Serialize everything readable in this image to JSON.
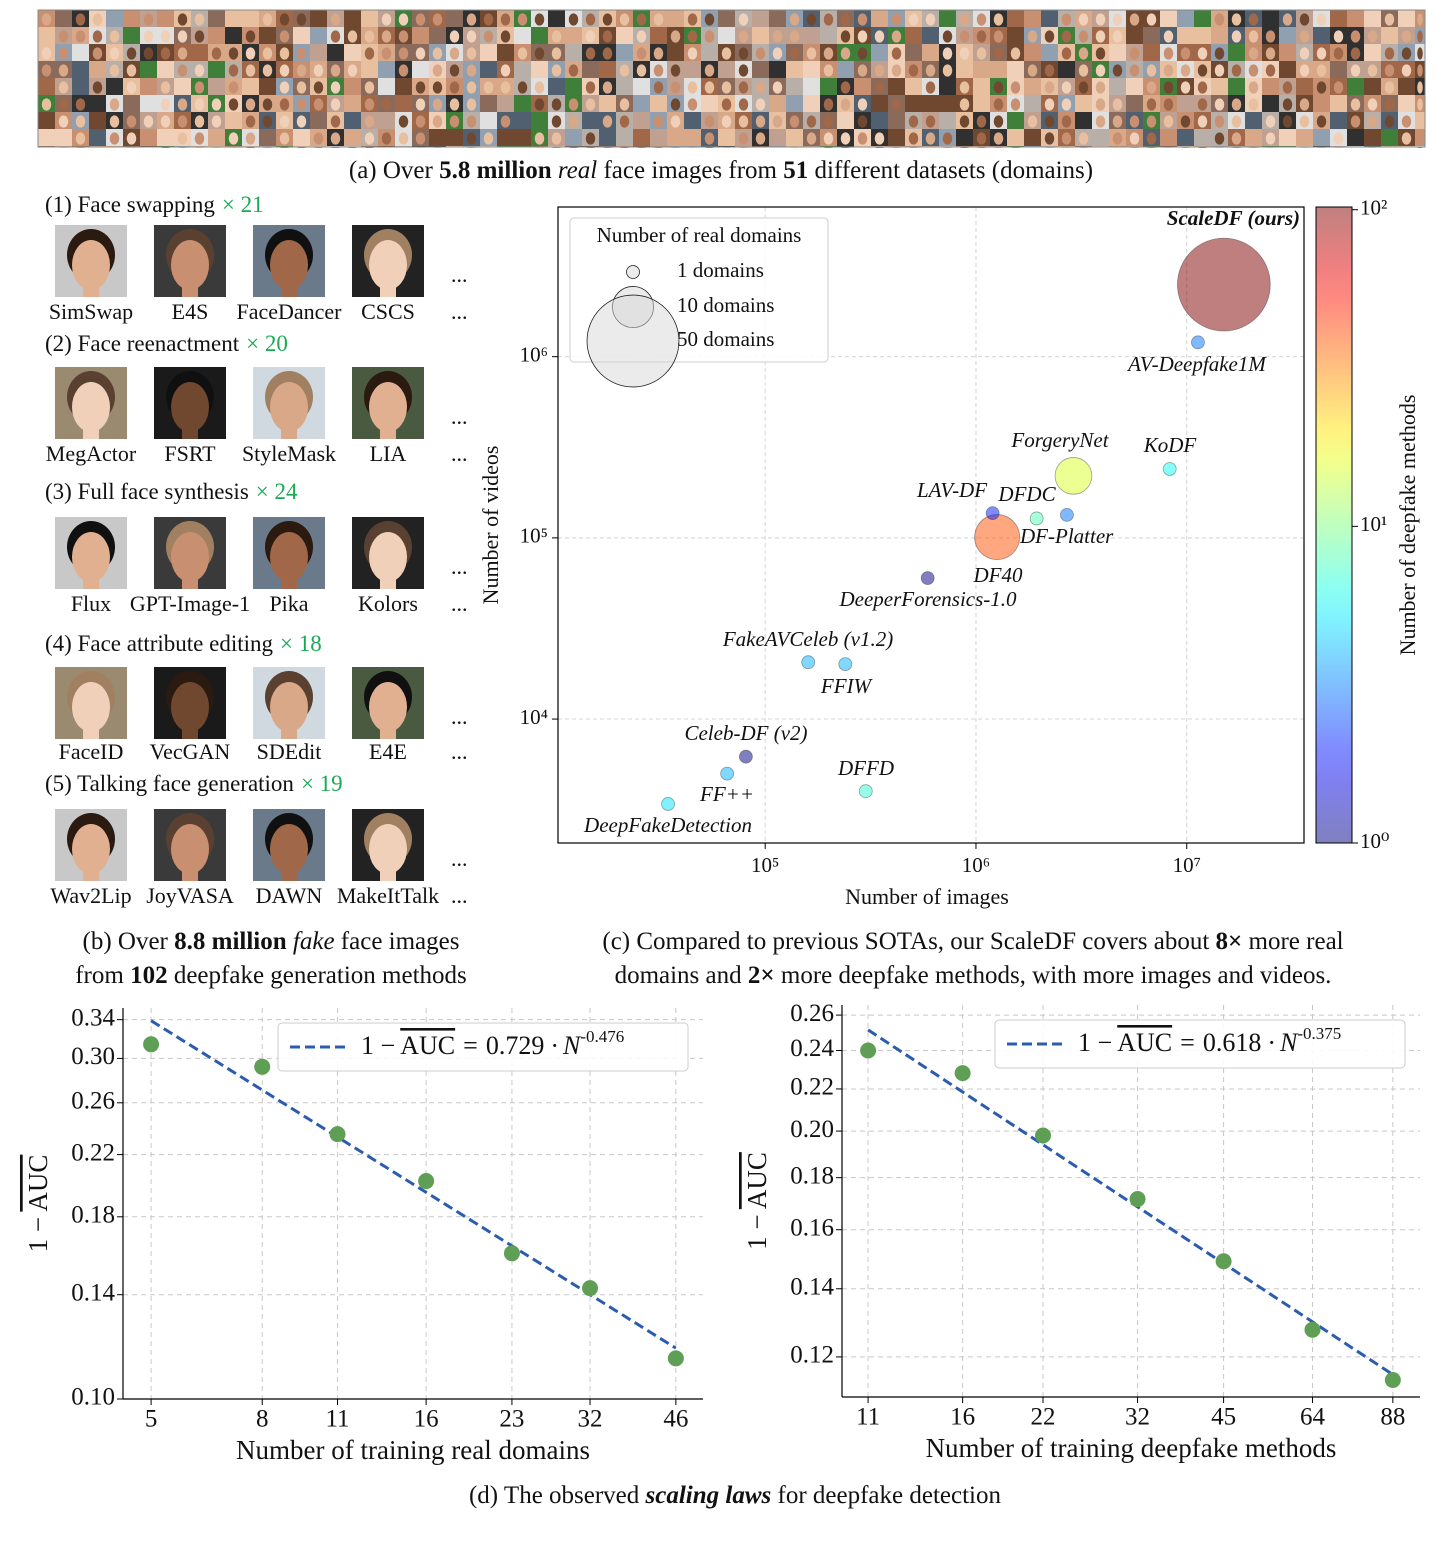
{
  "captions": {
    "a": [
      [
        "(a) Over ",
        "5.8 million ",
        "real",
        " face images from ",
        "51",
        " different datasets (domains)"
      ]
    ],
    "b": [
      [
        "(b) Over ",
        "8.8 million ",
        "fake",
        " face images"
      ],
      [
        "from ",
        "102",
        " deepfake generation methods"
      ]
    ],
    "c": [
      [
        "(c) Compared to previous SOTAs, our ScaleDF covers about ",
        "8×",
        " more real"
      ],
      [
        "domains and ",
        "2×",
        " more deepfake methods, with more images and videos."
      ]
    ],
    "d": [
      [
        "(d) The observed ",
        "scaling laws",
        " for deepfake detection"
      ]
    ]
  },
  "fake_sources": {
    "ellipsis": "...",
    "categories": [
      {
        "title": "(1) Face swapping",
        "count": "× 21",
        "methods": [
          "SimSwap",
          "E4S",
          "FaceDancer",
          "CSCS"
        ]
      },
      {
        "title": "(2) Face reenactment",
        "count": "× 20",
        "methods": [
          "MegActor",
          "FSRT",
          "StyleMask",
          "LIA"
        ]
      },
      {
        "title": "(3) Full face synthesis",
        "count": "× 24",
        "methods": [
          "Flux",
          "GPT-Image-1",
          "Pika",
          "Kolors"
        ]
      },
      {
        "title": "(4) Face attribute editing",
        "count": "× 18",
        "methods": [
          "FaceID",
          "VecGAN",
          "SDEdit",
          "E4E"
        ]
      },
      {
        "title": "(5) Talking face generation",
        "count": "× 19",
        "methods": [
          "Wav2Lip",
          "JoyVASA",
          "DAWN",
          "MakeItTalk"
        ]
      }
    ]
  },
  "chart_data": [
    {
      "type": "bubble",
      "x_label": "Number of images",
      "y_label": "Number of videos",
      "colorbar_label": "Number of deepfake methods",
      "log_x": true,
      "log_y": true,
      "grid": true,
      "colormap": "jet",
      "xlim": [
        10400,
        36000000
      ],
      "ylim": [
        2070,
        6700000
      ],
      "xticks": [
        {
          "value": 100000,
          "label": "10⁵"
        },
        {
          "value": 1000000,
          "label": "10⁶"
        },
        {
          "value": 10000000,
          "label": "10⁷"
        }
      ],
      "yticks": [
        {
          "value": 10000,
          "label": "10⁴"
        },
        {
          "value": 100000,
          "label": "10⁵"
        },
        {
          "value": 1000000,
          "label": "10⁶"
        }
      ],
      "clim": [
        1,
        102
      ],
      "cticks": [
        {
          "value": 1,
          "label": "10⁰"
        },
        {
          "value": 10,
          "label": "10¹"
        },
        {
          "value": 100,
          "label": "10²"
        }
      ],
      "legend_title": "Number of real domains",
      "legend_loc": "upper left",
      "legend_sizes": [
        1,
        10,
        50
      ],
      "legend_labels": [
        "1 domains",
        "10 domains",
        "50 domains"
      ],
      "points": [
        {
          "name": "ScaleDF (ours)",
          "x": 15000000,
          "y": 2500000,
          "domains": 51,
          "methods": 102
        },
        {
          "name": "AV-Deepfake1M",
          "x": 11300000,
          "y": 1200000,
          "domains": 1,
          "methods": 3
        },
        {
          "name": "KoDF",
          "x": 8300000,
          "y": 240000,
          "domains": 1,
          "methods": 6
        },
        {
          "name": "ForgeryNet",
          "x": 2900000,
          "y": 220000,
          "domains": 8,
          "methods": 15
        },
        {
          "name": "DFDC",
          "x": 1940000,
          "y": 128000,
          "domains": 1,
          "methods": 8
        },
        {
          "name": "DF-Platter",
          "x": 2700000,
          "y": 134000,
          "domains": 1,
          "methods": 3
        },
        {
          "name": "DF40",
          "x": 1260000,
          "y": 101000,
          "domains": 12,
          "methods": 40
        },
        {
          "name": "LAV-DF",
          "x": 1200000,
          "y": 137000,
          "domains": 1,
          "methods": 2
        },
        {
          "name": "DeeperForensics-1.0",
          "x": 590000,
          "y": 60000,
          "domains": 1,
          "methods": 1
        },
        {
          "name": "FakeAVCeleb (v1.2)",
          "x": 160000,
          "y": 20600,
          "domains": 1,
          "methods": 4
        },
        {
          "name": "FFIW",
          "x": 240000,
          "y": 20100,
          "domains": 1,
          "methods": 4
        },
        {
          "name": "Celeb-DF (v2)",
          "x": 81000,
          "y": 6200,
          "domains": 1,
          "methods": 1
        },
        {
          "name": "FF++",
          "x": 66000,
          "y": 5000,
          "domains": 1,
          "methods": 4
        },
        {
          "name": "DFFD",
          "x": 300000,
          "y": 4000,
          "domains": 1,
          "methods": 7
        },
        {
          "name": "DeepFakeDetection",
          "x": 34600,
          "y": 3400,
          "domains": 1,
          "methods": 5
        }
      ]
    },
    {
      "type": "scatter",
      "x_label": "Number of training real domains",
      "y_label": {
        "prefix": "1 − ",
        "overlined": "AUC"
      },
      "log_x": true,
      "log_y": true,
      "grid": true,
      "color": "#5f9e55",
      "fit_color": "#2b5cb0",
      "x": [
        5,
        8,
        11,
        16,
        23,
        32,
        46
      ],
      "values": [
        0.314,
        0.292,
        0.235,
        0.202,
        0.16,
        0.143,
        0.114
      ],
      "fit": {
        "coefficient": 0.729,
        "exponent": -0.476,
        "operator": "=",
        "times": "·",
        "variable": "N"
      },
      "legend_loc": "upper right",
      "xlim": [
        4.44,
        51.6
      ],
      "ylim": [
        0.1,
        0.353
      ],
      "xticks": [
        5,
        8,
        11,
        16,
        23,
        32,
        46
      ],
      "yticks": [
        {
          "value": 0.1,
          "label": "0.10"
        },
        0.14,
        0.18,
        0.22,
        0.26,
        {
          "value": 0.3,
          "label": "0.30"
        },
        0.34
      ]
    },
    {
      "type": "scatter",
      "x_label": "Number of training deepfake methods",
      "y_label": {
        "prefix": "1 − ",
        "overlined": "AUC"
      },
      "log_x": true,
      "log_y": true,
      "grid": true,
      "color": "#5f9e55",
      "fit_color": "#2b5cb0",
      "x": [
        11,
        16,
        22,
        32,
        45,
        64,
        88
      ],
      "values": [
        0.24,
        0.228,
        0.198,
        0.1715,
        0.149,
        0.1276,
        0.1139
      ],
      "fit": {
        "coefficient": 0.618,
        "exponent": -0.375,
        "operator": "=",
        "times": "·",
        "variable": "N"
      },
      "legend_loc": "upper right",
      "xlim": [
        9.92,
        98
      ],
      "ylim": [
        0.1096,
        0.266
      ],
      "xticks": [
        11,
        16,
        22,
        32,
        45,
        64,
        88
      ],
      "yticks": [
        0.12,
        0.14,
        0.16,
        0.18,
        {
          "value": 0.2,
          "label": "0.20"
        },
        0.22,
        0.24,
        0.26
      ]
    }
  ]
}
